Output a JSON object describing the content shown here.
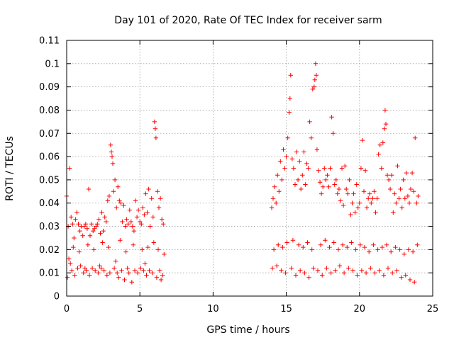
{
  "chart_data": {
    "type": "scatter",
    "title": "Day 101 of 2020, Rate Of TEC Index for receiver sarm",
    "xlabel": "GPS time / hours",
    "ylabel": "ROTI / TECUs",
    "xlim": [
      0,
      25
    ],
    "ylim": [
      0,
      0.11
    ],
    "x_ticks": [
      "0",
      "5",
      "10",
      "15",
      "20",
      "25"
    ],
    "y_ticks": [
      "0",
      "0.01",
      "0.02",
      "0.03",
      "0.04",
      "0.05",
      "0.06",
      "0.07",
      "0.08",
      "0.09",
      "0.1",
      "0.11"
    ],
    "grid": true,
    "marker": "plus",
    "color": "#ff0000",
    "series": [
      {
        "x": [
          0.0,
          0.1,
          0.2,
          0.3,
          0.4,
          0.5,
          0.6,
          0.7,
          0.8,
          0.9,
          1.0,
          1.1,
          1.2,
          1.3,
          1.4,
          1.5,
          1.6,
          1.7,
          1.8,
          1.9,
          2.0,
          2.1,
          2.2,
          2.3,
          2.4,
          2.5,
          2.6,
          2.7,
          2.8,
          2.9,
          3.0,
          3.05,
          3.1,
          3.15,
          3.2,
          3.3,
          3.4,
          3.5,
          3.6,
          3.7,
          3.8,
          3.9,
          4.0,
          4.1,
          4.2,
          4.3,
          4.4,
          4.5,
          4.6,
          4.7,
          4.8,
          4.9,
          5.0,
          5.1,
          5.2,
          5.3,
          5.4,
          5.5,
          5.6,
          5.7,
          5.8,
          5.9,
          6.0,
          6.05,
          6.1,
          6.2,
          6.3,
          6.4,
          6.5,
          6.6,
          0.15,
          0.25,
          1.25,
          2.25,
          3.35,
          3.45,
          4.15,
          5.35,
          6.35,
          0.05,
          0.35,
          0.55,
          0.75,
          0.95,
          1.15,
          1.35,
          1.55,
          1.75,
          1.95,
          2.15,
          2.35,
          2.55,
          2.75,
          2.95,
          3.25,
          3.55,
          3.75,
          3.95,
          4.25,
          4.45,
          4.65,
          4.85,
          5.05,
          5.25,
          5.45,
          5.65,
          5.85,
          6.15,
          6.45,
          6.55,
          0.45,
          0.85,
          1.45,
          1.85,
          2.45,
          2.85,
          3.65,
          4.05,
          4.55,
          5.15,
          5.55,
          5.95,
          6.25,
          6.65
        ],
        "y": [
          0.043,
          0.03,
          0.055,
          0.034,
          0.031,
          0.025,
          0.033,
          0.036,
          0.031,
          0.028,
          0.03,
          0.026,
          0.03,
          0.031,
          0.029,
          0.046,
          0.026,
          0.031,
          0.028,
          0.029,
          0.03,
          0.031,
          0.033,
          0.027,
          0.036,
          0.028,
          0.034,
          0.032,
          0.041,
          0.043,
          0.065,
          0.062,
          0.06,
          0.057,
          0.045,
          0.05,
          0.038,
          0.047,
          0.041,
          0.04,
          0.032,
          0.039,
          0.03,
          0.033,
          0.031,
          0.037,
          0.032,
          0.03,
          0.028,
          0.041,
          0.034,
          0.037,
          0.032,
          0.031,
          0.038,
          0.035,
          0.044,
          0.036,
          0.046,
          0.03,
          0.042,
          0.034,
          0.075,
          0.072,
          0.068,
          0.045,
          0.038,
          0.042,
          0.033,
          0.031,
          0.016,
          0.014,
          0.012,
          0.013,
          0.015,
          0.01,
          0.012,
          0.014,
          0.011,
          0.008,
          0.011,
          0.009,
          0.012,
          0.013,
          0.01,
          0.011,
          0.009,
          0.012,
          0.011,
          0.01,
          0.012,
          0.011,
          0.009,
          0.01,
          0.012,
          0.008,
          0.011,
          0.007,
          0.01,
          0.006,
          0.011,
          0.01,
          0.012,
          0.011,
          0.009,
          0.011,
          0.01,
          0.008,
          0.007,
          0.009,
          0.021,
          0.019,
          0.022,
          0.02,
          0.023,
          0.021,
          0.024,
          0.019,
          0.022,
          0.02,
          0.021,
          0.023,
          0.02,
          0.018
        ]
      },
      {
        "x": [
          14.0,
          14.1,
          14.2,
          14.3,
          14.4,
          14.5,
          14.6,
          14.7,
          14.8,
          14.9,
          15.0,
          15.1,
          15.2,
          15.25,
          15.3,
          15.4,
          15.5,
          15.6,
          15.7,
          15.8,
          15.9,
          16.0,
          16.1,
          16.2,
          16.3,
          16.4,
          16.5,
          16.6,
          16.7,
          16.8,
          16.9,
          16.95,
          17.0,
          17.05,
          17.1,
          17.2,
          17.3,
          17.4,
          17.5,
          17.6,
          17.7,
          17.8,
          17.9,
          18.0,
          18.1,
          18.2,
          18.3,
          18.4,
          18.5,
          18.6,
          18.7,
          18.8,
          18.9,
          19.0,
          19.1,
          19.2,
          19.3,
          19.4,
          19.5,
          19.6,
          19.7,
          19.8,
          19.9,
          20.0,
          20.1,
          20.2,
          20.3,
          20.4,
          20.5,
          20.6,
          20.7,
          20.8,
          20.9,
          21.0,
          21.1,
          21.2,
          21.3,
          21.4,
          21.5,
          21.6,
          21.7,
          21.75,
          21.8,
          21.9,
          22.0,
          22.1,
          22.2,
          22.3,
          22.4,
          22.5,
          22.6,
          22.7,
          22.8,
          22.9,
          23.0,
          23.1,
          23.2,
          23.3,
          23.4,
          23.5,
          23.6,
          23.7,
          23.8,
          23.9,
          24.0,
          14.05,
          14.35,
          14.65,
          14.95,
          15.35,
          15.65,
          15.95,
          16.25,
          16.55,
          16.85,
          17.15,
          17.45,
          17.75,
          18.05,
          18.35,
          18.65,
          18.95,
          19.25,
          19.55,
          19.85,
          20.15,
          20.45,
          20.75,
          21.05,
          21.35,
          21.65,
          21.95,
          22.25,
          22.55,
          22.85,
          23.15,
          23.45,
          23.75,
          14.15,
          14.45,
          14.75,
          15.05,
          15.45,
          15.85,
          16.15,
          16.45,
          16.75,
          17.35,
          17.65,
          17.95,
          18.25,
          18.55,
          18.85,
          19.15,
          19.45,
          19.75,
          20.05,
          20.35,
          20.65,
          20.95,
          21.25,
          21.55,
          21.85,
          22.15,
          22.45,
          22.75,
          23.05,
          23.35,
          23.65,
          23.95
        ],
        "y": [
          0.038,
          0.042,
          0.047,
          0.04,
          0.052,
          0.045,
          0.058,
          0.05,
          0.063,
          0.055,
          0.06,
          0.068,
          0.079,
          0.085,
          0.095,
          0.059,
          0.055,
          0.048,
          0.062,
          0.05,
          0.058,
          0.046,
          0.052,
          0.062,
          0.048,
          0.057,
          0.055,
          0.075,
          0.068,
          0.089,
          0.09,
          0.093,
          0.1,
          0.095,
          0.063,
          0.054,
          0.049,
          0.044,
          0.047,
          0.055,
          0.05,
          0.052,
          0.047,
          0.055,
          0.077,
          0.07,
          0.048,
          0.05,
          0.044,
          0.046,
          0.041,
          0.055,
          0.039,
          0.056,
          0.046,
          0.044,
          0.05,
          0.035,
          0.04,
          0.044,
          0.036,
          0.048,
          0.038,
          0.04,
          0.055,
          0.067,
          0.045,
          0.054,
          0.038,
          0.042,
          0.044,
          0.04,
          0.042,
          0.045,
          0.036,
          0.042,
          0.061,
          0.065,
          0.055,
          0.066,
          0.072,
          0.08,
          0.074,
          0.052,
          0.05,
          0.046,
          0.052,
          0.036,
          0.044,
          0.04,
          0.056,
          0.042,
          0.046,
          0.038,
          0.05,
          0.042,
          0.053,
          0.043,
          0.04,
          0.046,
          0.053,
          0.045,
          0.068,
          0.04,
          0.043,
          0.012,
          0.013,
          0.011,
          0.01,
          0.012,
          0.009,
          0.011,
          0.01,
          0.008,
          0.012,
          0.011,
          0.009,
          0.012,
          0.01,
          0.011,
          0.013,
          0.01,
          0.012,
          0.011,
          0.009,
          0.011,
          0.01,
          0.012,
          0.01,
          0.011,
          0.009,
          0.012,
          0.01,
          0.011,
          0.008,
          0.009,
          0.007,
          0.006,
          0.02,
          0.022,
          0.021,
          0.023,
          0.024,
          0.022,
          0.021,
          0.023,
          0.02,
          0.022,
          0.024,
          0.021,
          0.023,
          0.02,
          0.022,
          0.021,
          0.023,
          0.02,
          0.022,
          0.021,
          0.019,
          0.022,
          0.02,
          0.021,
          0.022,
          0.019,
          0.021,
          0.02,
          0.018,
          0.02,
          0.019,
          0.022
        ]
      }
    ]
  }
}
